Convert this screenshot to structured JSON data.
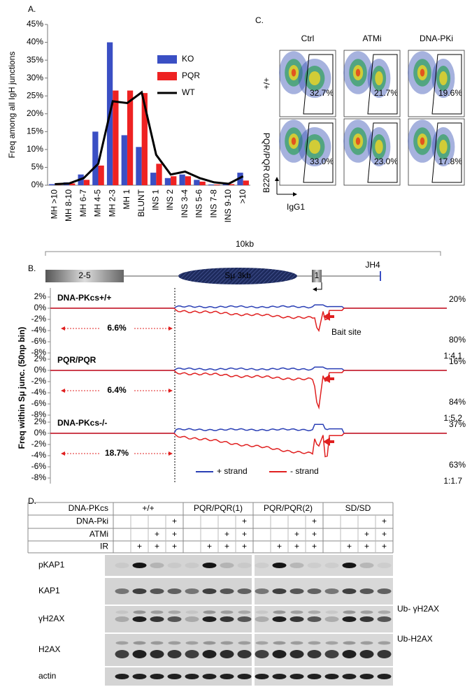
{
  "panel_labels": [
    "A.",
    "B.",
    "C.",
    "D."
  ],
  "chart_data": {
    "type": "bar",
    "ylabel": "Freq among all IgH junctions",
    "categories": [
      "MH >10",
      "MH 8-10",
      "MH 6-7",
      "MH 4-5",
      "MH 2-3",
      "MH 1",
      "BLUNT",
      "INS 1",
      "INS 2",
      "INS 3-4",
      "INS 5-6",
      "INS 7-8",
      "INS 9-10",
      ">10"
    ],
    "series": [
      {
        "name": "KO",
        "color": "#3a4fc4",
        "values": [
          0.3,
          0.8,
          3,
          15,
          40,
          14,
          10.7,
          3.5,
          2,
          3,
          1.5,
          0.2,
          0.5,
          3.5
        ]
      },
      {
        "name": "PQR",
        "color": "#ee2222",
        "values": [
          0.2,
          0.5,
          1.5,
          5.5,
          26.5,
          26.5,
          25.8,
          6,
          2.5,
          2.5,
          1,
          0.2,
          0.3,
          1.3
        ]
      },
      {
        "name": "WT",
        "color": "#000000",
        "type": "line",
        "values": [
          0.3,
          0.5,
          2,
          6,
          23.5,
          23,
          26,
          8.5,
          3,
          3.8,
          2,
          0.8,
          0.4,
          2.5
        ]
      }
    ],
    "ylim": [
      0,
      45
    ],
    "yticks": [
      {
        "value": 0,
        "label": "0%"
      },
      {
        "value": 5,
        "label": "5%"
      },
      {
        "value": 10,
        "label": "10%"
      },
      {
        "value": 15,
        "label": "15%"
      },
      {
        "value": 20,
        "label": "20%"
      },
      {
        "value": 25,
        "label": "25%"
      },
      {
        "value": 30,
        "label": "30%"
      },
      {
        "value": 35,
        "label": "35%"
      },
      {
        "value": 40,
        "label": "40%"
      },
      {
        "value": 45,
        "label": "45%"
      }
    ],
    "legend": "right"
  },
  "panel_b": {
    "scale": "10kb",
    "map": [
      "2-5",
      "Sμ 3kb",
      "1",
      "JH4"
    ],
    "bait": "Bait site",
    "ylabel": "Freq within Sμ junc. (50np bin)",
    "yticks": [
      {
        "value": 2,
        "label": "2%"
      },
      {
        "value": 0,
        "label": "0%"
      },
      {
        "value": -2,
        "label": "-2%"
      },
      {
        "value": -4,
        "label": "-4%"
      },
      {
        "value": -6,
        "label": "-6%"
      },
      {
        "value": -8,
        "label": "-8%"
      }
    ],
    "tracks": [
      {
        "name": "DNA-PKcs+/+",
        "left": "6.6%",
        "plus": "20%",
        "minus": "80%",
        "ratio": [
          "1",
          ":4.1"
        ]
      },
      {
        "name": "PQR/PQR",
        "left": "6.4%",
        "plus": "16%",
        "minus": "84%",
        "ratio": [
          "1",
          ":5.2"
        ]
      },
      {
        "name": "DNA-PKcs-/-",
        "left": "18.7%",
        "plus": "37%",
        "minus": "63%",
        "ratio": [
          "1",
          ":1.7"
        ]
      }
    ],
    "legend": [
      "+ strand",
      "- strand"
    ]
  },
  "panel_c": {
    "columns": [
      "Ctrl",
      "ATMi",
      "DNA-PKi"
    ],
    "rows": [
      "+/+",
      "PQR/PQR"
    ],
    "percents": [
      [
        "32.7%",
        "21.7%",
        "19.6%"
      ],
      [
        "33.0%",
        "23.0%",
        "17.8%"
      ]
    ],
    "xlabel": "IgG1",
    "ylabel": "B220"
  },
  "panel_d": {
    "header": "DNA-PKcs",
    "groups": [
      "+/+",
      "PQR/PQR(1)",
      "PQR/PQR(2)",
      "SD/SD"
    ],
    "treatments": [
      "DNA-Pki",
      "ATMi",
      "IR"
    ],
    "plus": "+",
    "blots": [
      "pKAP1",
      "KAP1",
      "γH2AX",
      "H2AX",
      "actin"
    ],
    "side_labels": [
      "Ub- γH2AX",
      "Ub-H2AX"
    ]
  }
}
